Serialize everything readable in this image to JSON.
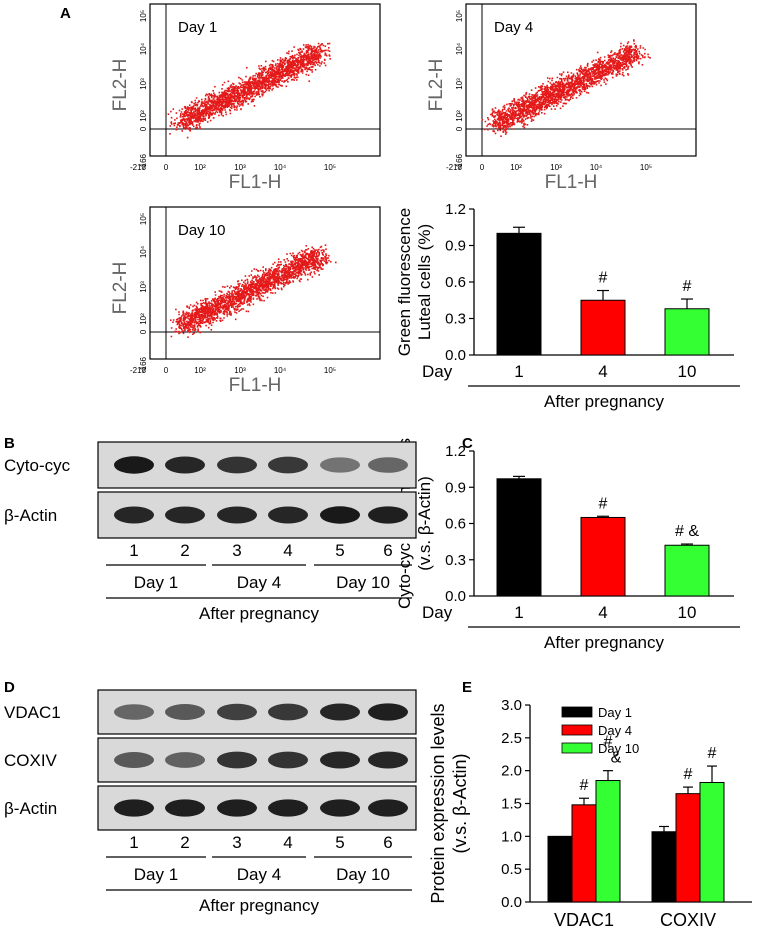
{
  "panel_labels": {
    "a": "A",
    "b": "B",
    "c": "C",
    "d": "D",
    "e": "E"
  },
  "colors": {
    "day1": "#000000",
    "day4": "#ff0000",
    "day10": "#33ff33",
    "dots": "#e41a1a",
    "axis_grey": "#666666"
  },
  "flow": {
    "xlabel": "FL1-H",
    "ylabel": "FL2-H",
    "x_ticks": [
      "-218",
      "0",
      "10²",
      "10³",
      "10⁴",
      "10⁵"
    ],
    "y_ticks": [
      "-166",
      "0",
      "10²",
      "10³",
      "10⁴",
      "10⁵"
    ],
    "plots": [
      {
        "title": "Day 1"
      },
      {
        "title": "Day 4"
      },
      {
        "title": "Day 10"
      }
    ]
  },
  "blot_b": {
    "rows": [
      {
        "label": "Cyto-cyc",
        "intensity": [
          0.9,
          0.85,
          0.8,
          0.78,
          0.55,
          0.6
        ]
      },
      {
        "label": "β-Actin",
        "intensity": [
          0.85,
          0.85,
          0.85,
          0.85,
          0.9,
          0.88
        ]
      }
    ],
    "lanes": [
      "1",
      "2",
      "3",
      "4",
      "5",
      "6"
    ],
    "groups": [
      "Day 1",
      "Day 4",
      "Day 10"
    ],
    "footer": "After pregnancy"
  },
  "blot_d": {
    "rows": [
      {
        "label": "VDAC1",
        "intensity": [
          0.6,
          0.65,
          0.75,
          0.78,
          0.85,
          0.88
        ]
      },
      {
        "label": "COXIV",
        "intensity": [
          0.65,
          0.62,
          0.8,
          0.8,
          0.85,
          0.85
        ]
      },
      {
        "label": "β-Actin",
        "intensity": [
          0.88,
          0.88,
          0.88,
          0.88,
          0.88,
          0.88
        ]
      }
    ],
    "lanes": [
      "1",
      "2",
      "3",
      "4",
      "5",
      "6"
    ],
    "groups": [
      "Day 1",
      "Day 4",
      "Day 10"
    ],
    "footer": "After pregnancy"
  },
  "chart_data": [
    {
      "id": "A",
      "type": "bar",
      "ylabel_line1": "Green fluorescence",
      "ylabel_line2": "Luteal cells (%)",
      "x_prefix": "Day",
      "categories": [
        "1",
        "4",
        "10"
      ],
      "values": [
        1.0,
        0.45,
        0.38
      ],
      "errors": [
        0.05,
        0.08,
        0.08
      ],
      "annotations": [
        "",
        "#",
        "#"
      ],
      "ylim": [
        0,
        1.2
      ],
      "yticks": [
        "0.0",
        "0.3",
        "0.6",
        "0.9",
        "1.2"
      ],
      "xlabel": "After pregnancy"
    },
    {
      "id": "C",
      "type": "bar",
      "ylabel_line1": "Cyto-cyc protein levels",
      "ylabel_line2": "(v.s. β-Actin)",
      "x_prefix": "Day",
      "categories": [
        "1",
        "4",
        "10"
      ],
      "values": [
        0.97,
        0.65,
        0.42
      ],
      "errors": [
        0.02,
        0.01,
        0.01
      ],
      "annotations": [
        "",
        "#",
        "# &"
      ],
      "ylim": [
        0,
        1.2
      ],
      "yticks": [
        "0.0",
        "0.3",
        "0.6",
        "0.9",
        "1.2"
      ],
      "xlabel": "After pregnancy"
    },
    {
      "id": "E",
      "type": "bar",
      "ylabel_line1": "Protein expression levels",
      "ylabel_line2": "(v.s. β-Actin)",
      "categories": [
        "VDAC1",
        "COXIV"
      ],
      "series": [
        {
          "name": "Day 1",
          "values": [
            1.0,
            1.07
          ],
          "errors": [
            0.0,
            0.08
          ],
          "annotations": [
            "",
            ""
          ]
        },
        {
          "name": "Day 4",
          "values": [
            1.48,
            1.65
          ],
          "errors": [
            0.1,
            0.1
          ],
          "annotations": [
            "#",
            "#"
          ]
        },
        {
          "name": "Day 10",
          "values": [
            1.85,
            1.82
          ],
          "errors": [
            0.15,
            0.25
          ],
          "annotations": [
            "# &",
            "#"
          ]
        }
      ],
      "ylim": [
        0,
        3.0
      ],
      "yticks": [
        "0.0",
        "0.5",
        "1.0",
        "1.5",
        "2.0",
        "2.5",
        "3.0"
      ],
      "legend": "top-left"
    }
  ]
}
